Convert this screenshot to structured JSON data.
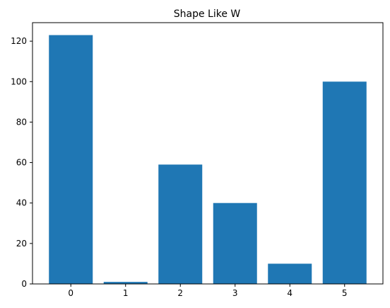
{
  "chart_data": {
    "type": "bar",
    "title": "Shape Like W",
    "xlabel": "",
    "ylabel": "",
    "categories": [
      "0",
      "1",
      "2",
      "3",
      "4",
      "5"
    ],
    "values": [
      123,
      1,
      59,
      40,
      10,
      100
    ],
    "ylim": [
      0,
      129.15
    ],
    "yticks": [
      0,
      20,
      40,
      60,
      80,
      100,
      120
    ],
    "bar_color": "#1f77b4",
    "grid": false,
    "legend": "none"
  }
}
